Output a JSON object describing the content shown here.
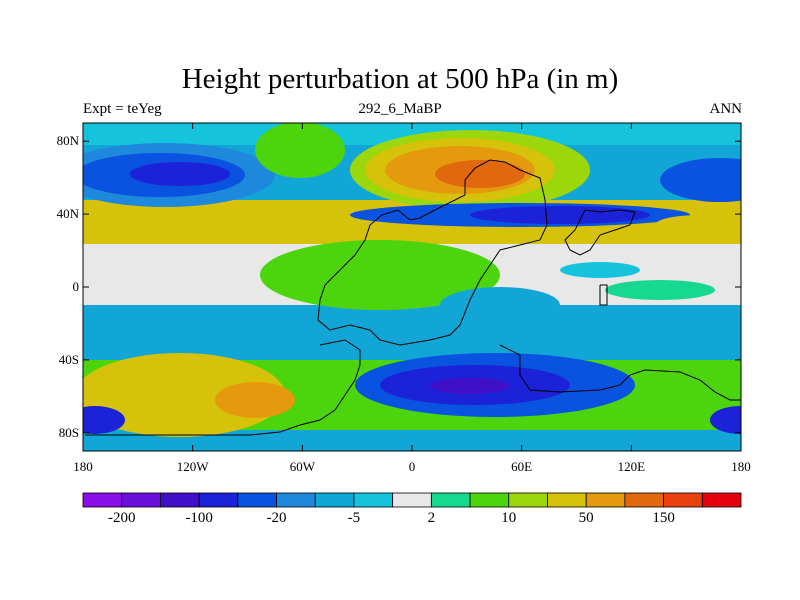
{
  "chart_data": {
    "type": "heatmap",
    "title": "Height perturbation at 500 hPa (in m)",
    "subtitle_left": "Expt = teYeg",
    "subtitle_center": "292_6_MaBP",
    "subtitle_right": "ANN",
    "variable": "500 hPa geopotential height perturbation",
    "units": "m",
    "xlim": [
      -180,
      180
    ],
    "ylim": [
      -90,
      90
    ],
    "x_ticks": [
      {
        "value": -180,
        "label": "180"
      },
      {
        "value": -120,
        "label": "120W"
      },
      {
        "value": -60,
        "label": "60W"
      },
      {
        "value": 0,
        "label": "0"
      },
      {
        "value": 60,
        "label": "60E"
      },
      {
        "value": 120,
        "label": "120E"
      },
      {
        "value": 180,
        "label": "180"
      }
    ],
    "y_ticks": [
      {
        "value": 80,
        "label": "80N"
      },
      {
        "value": 40,
        "label": "40N"
      },
      {
        "value": 0,
        "label": "0"
      },
      {
        "value": -40,
        "label": "40S"
      },
      {
        "value": -80,
        "label": "80S"
      }
    ],
    "colorbar": {
      "colors": [
        "#8a0ee8",
        "#6a0edb",
        "#4010c8",
        "#1b22d8",
        "#0a52e0",
        "#1e88dd",
        "#12a6d6",
        "#15c3dc",
        "#e8e8e8",
        "#16d890",
        "#4cd40c",
        "#9cd70c",
        "#d6c20a",
        "#e49a0c",
        "#e2680e",
        "#e8400c",
        "#e4000e"
      ],
      "shown_labels": [
        "-200",
        "-100",
        "-20",
        "-5",
        "2",
        "10",
        "50",
        "150"
      ]
    },
    "field_regions": [
      {
        "region": "North Pacific 60N",
        "lon": -160,
        "lat": 60,
        "level": "-100 to -20"
      },
      {
        "region": "North Atlantic / Europe 60N",
        "lon": -5,
        "lat": 60,
        "level": "50 to 150"
      },
      {
        "region": "Central Asia 40N",
        "lon": 60,
        "lat": 42,
        "level": "-100 to -20"
      },
      {
        "region": "Tropics",
        "lon": 0,
        "lat": 0,
        "level": "-5 to 10"
      },
      {
        "region": "South Pacific 50S",
        "lon": -140,
        "lat": -50,
        "level": "50 to 150"
      },
      {
        "region": "Southern Indian Ocean 55S",
        "lon": 40,
        "lat": -55,
        "level": "-200 to -100"
      }
    ]
  }
}
